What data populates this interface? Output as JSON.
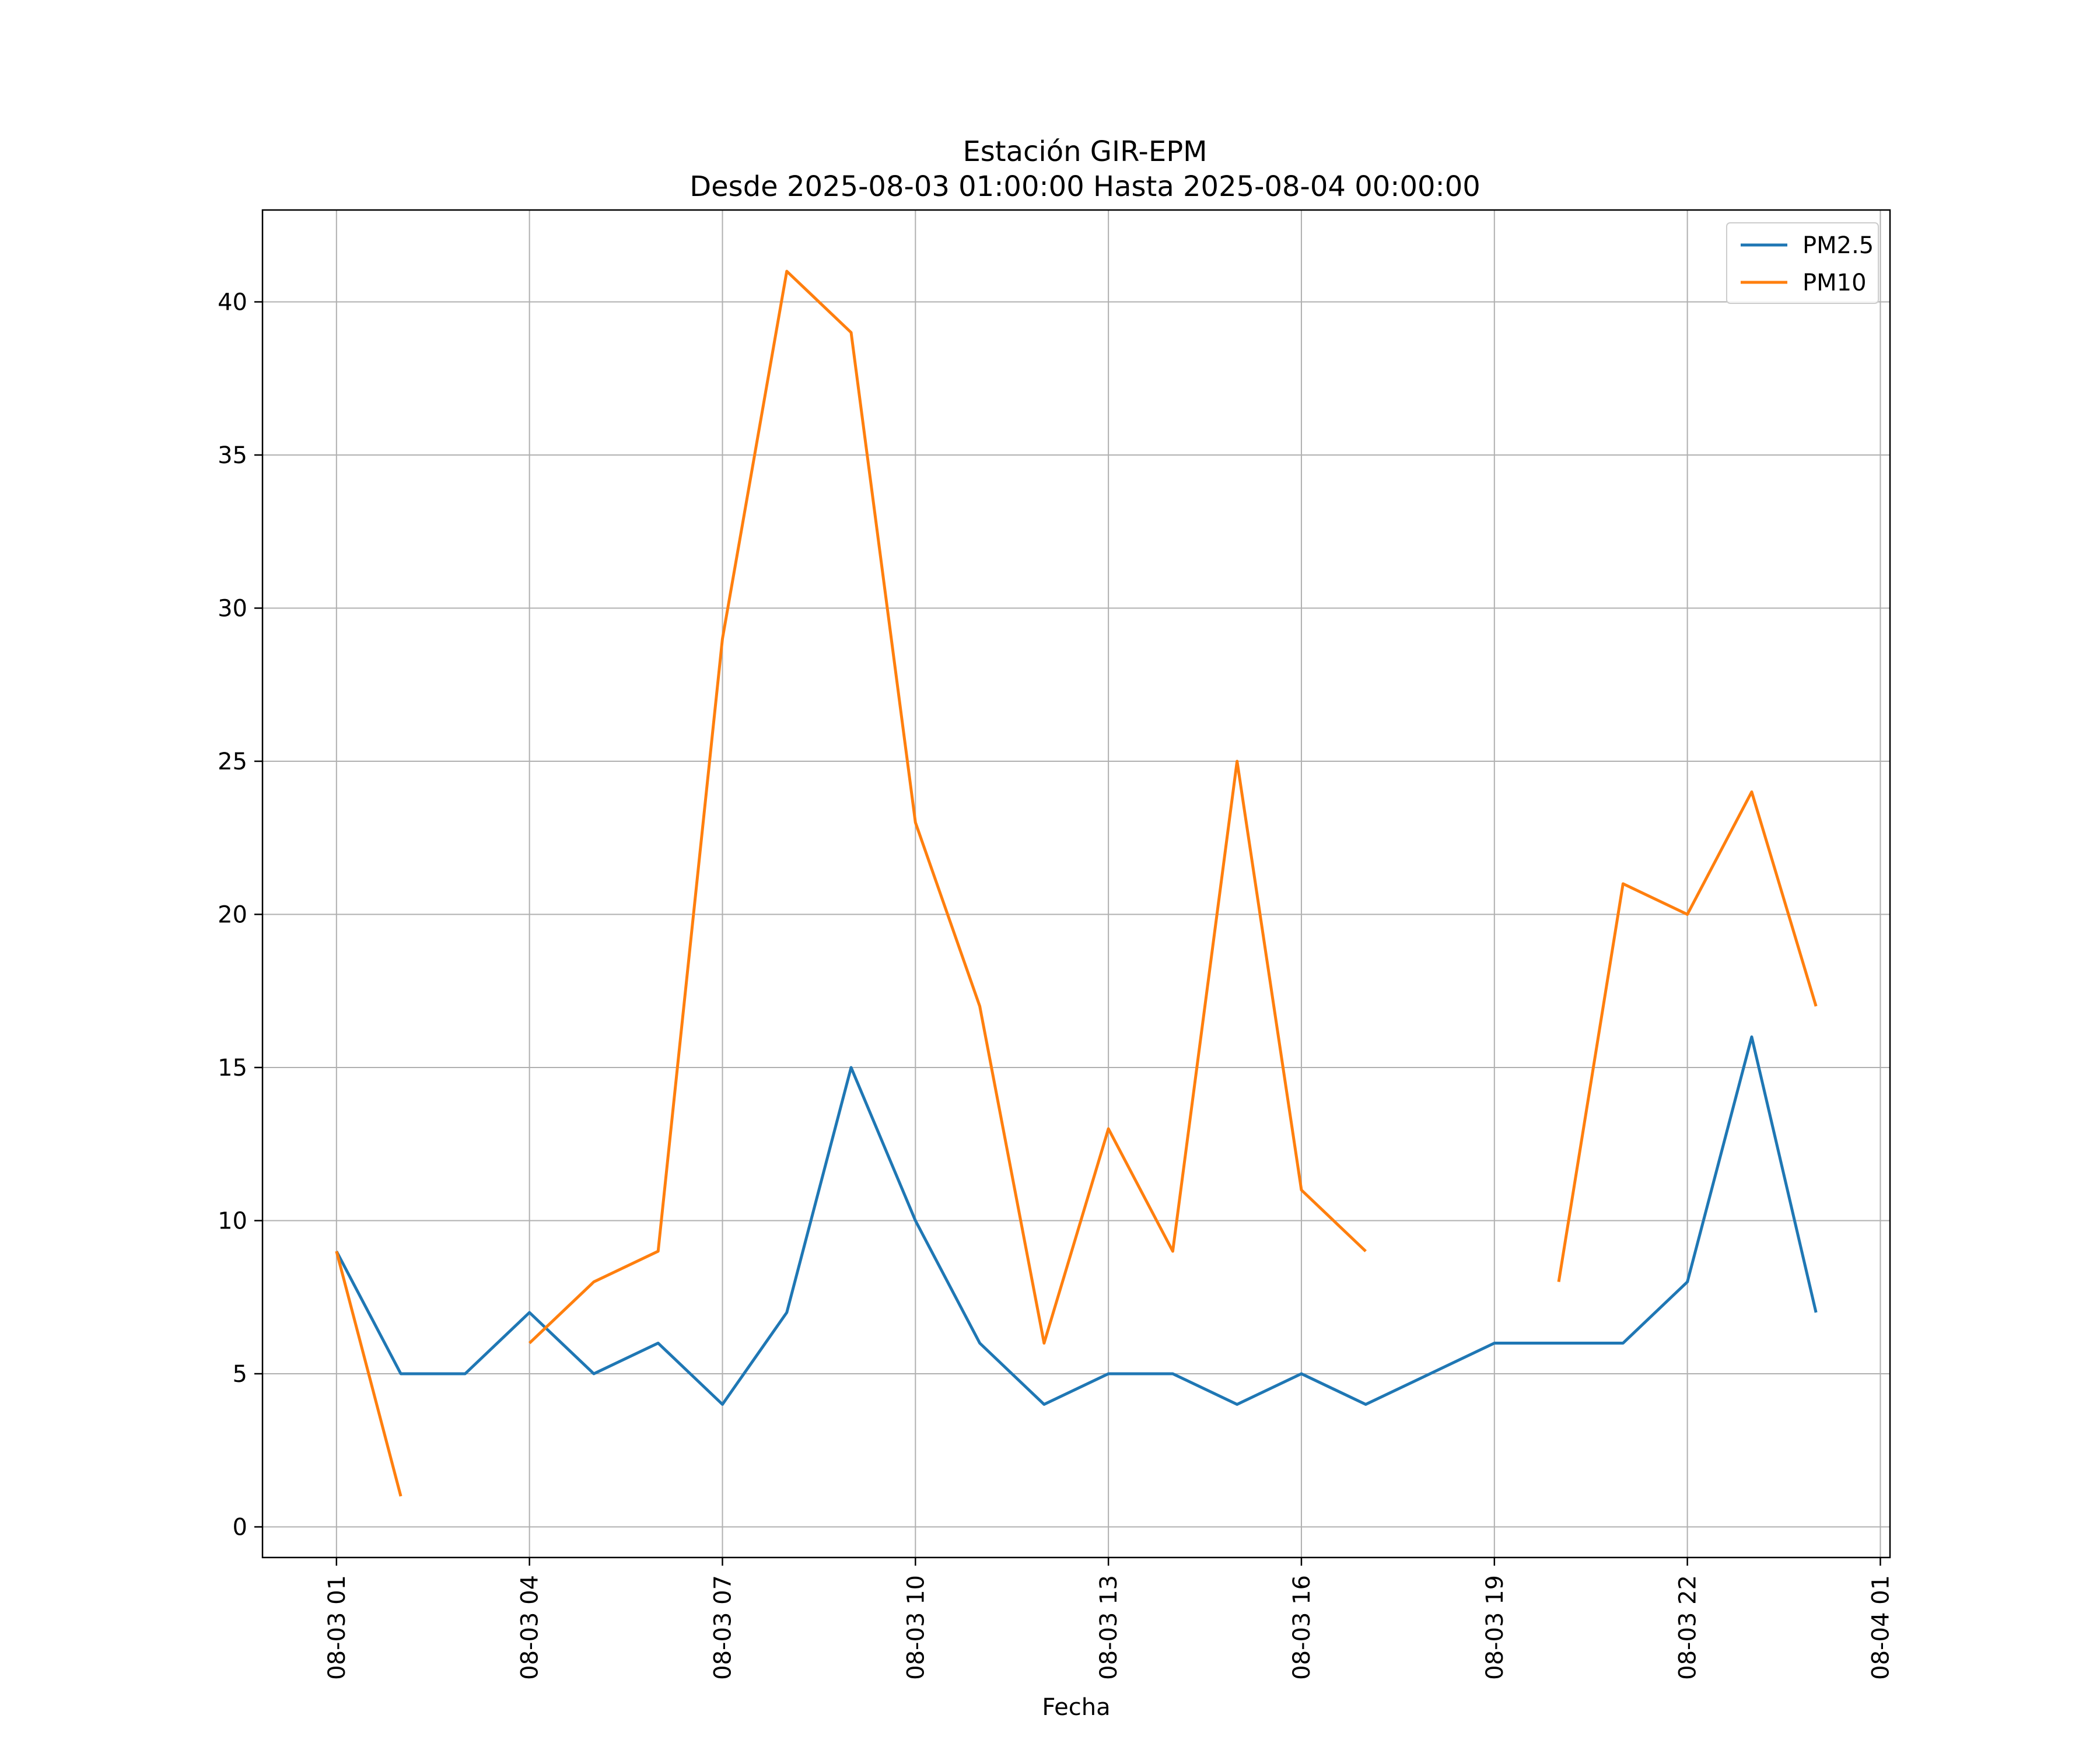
{
  "chart_data": {
    "type": "line",
    "title": "Estación GIR-EPM",
    "subtitle": "Desde 2025-08-03 01:00:00 Hasta 2025-08-04 00:00:00",
    "xlabel": "Fecha",
    "ylabel": "",
    "x_hours": [
      1,
      2,
      3,
      4,
      5,
      6,
      7,
      8,
      9,
      10,
      11,
      12,
      13,
      14,
      15,
      16,
      17,
      18,
      19,
      20,
      21,
      22,
      23,
      24
    ],
    "xlim": [
      -0.15,
      25.15
    ],
    "ylim": [
      -1,
      43
    ],
    "grid": true,
    "legend_position": "top-right",
    "x_ticks": [
      {
        "hour": 1,
        "label": "08-03 01"
      },
      {
        "hour": 4,
        "label": "08-03 04"
      },
      {
        "hour": 7,
        "label": "08-03 07"
      },
      {
        "hour": 10,
        "label": "08-03 10"
      },
      {
        "hour": 13,
        "label": "08-03 13"
      },
      {
        "hour": 16,
        "label": "08-03 16"
      },
      {
        "hour": 19,
        "label": "08-03 19"
      },
      {
        "hour": 22,
        "label": "08-03 22"
      },
      {
        "hour": 25,
        "label": "08-04 01"
      }
    ],
    "y_ticks": [
      {
        "value": 0,
        "label": "0"
      },
      {
        "value": 5,
        "label": "5"
      },
      {
        "value": 10,
        "label": "10"
      },
      {
        "value": 15,
        "label": "15"
      },
      {
        "value": 20,
        "label": "20"
      },
      {
        "value": 25,
        "label": "25"
      },
      {
        "value": 30,
        "label": "30"
      },
      {
        "value": 35,
        "label": "35"
      },
      {
        "value": 40,
        "label": "40"
      }
    ],
    "series": [
      {
        "name": "PM2.5",
        "color": "#1f77b4",
        "values": [
          9,
          5,
          5,
          7,
          5,
          6,
          4,
          7,
          15,
          10,
          6,
          4,
          5,
          5,
          4,
          5,
          4,
          5,
          6,
          6,
          6,
          8,
          16,
          7
        ]
      },
      {
        "name": "PM10",
        "color": "#ff7f0e",
        "values": [
          9,
          1,
          null,
          6,
          8,
          9,
          29,
          41,
          39,
          23,
          17,
          6,
          13,
          9,
          25,
          11,
          9,
          null,
          null,
          8,
          21,
          20,
          24,
          17
        ]
      }
    ]
  }
}
